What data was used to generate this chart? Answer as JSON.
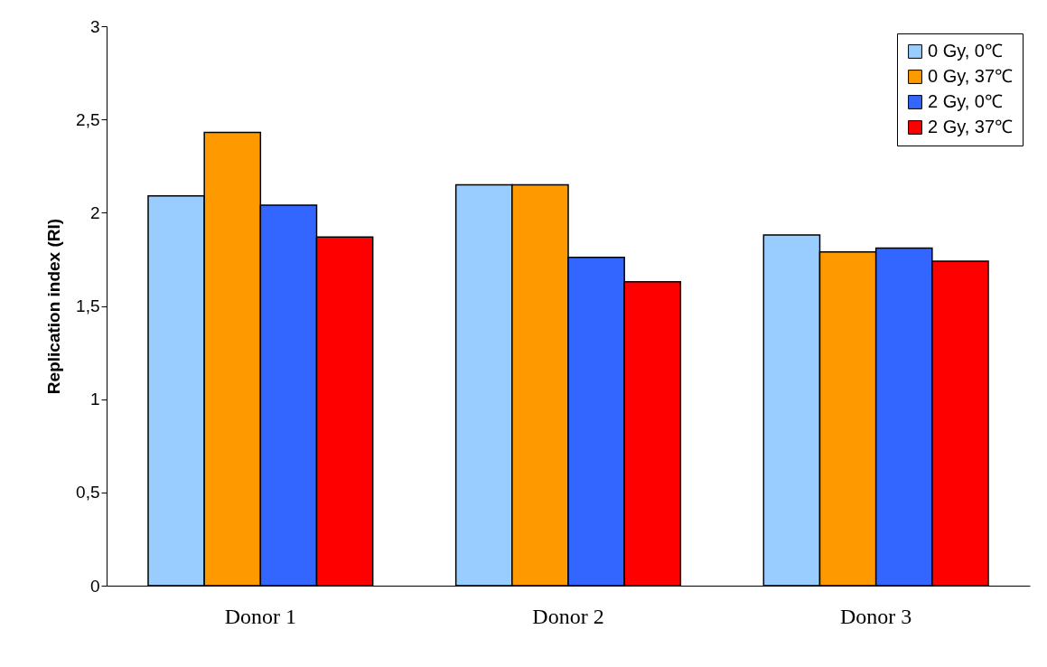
{
  "chart_data": {
    "type": "bar",
    "ylabel": "Replication index (RI)",
    "categories": [
      "Donor 1",
      "Donor 2",
      "Donor 3"
    ],
    "series": [
      {
        "name": "0 Gy, 0℃",
        "color": "#99ccff",
        "values": [
          2.09,
          2.15,
          1.88
        ]
      },
      {
        "name": "0 Gy, 37℃",
        "color": "#ff9900",
        "values": [
          2.43,
          2.15,
          1.79
        ]
      },
      {
        "name": "2 Gy, 0℃",
        "color": "#3366ff",
        "values": [
          2.04,
          1.76,
          1.81
        ]
      },
      {
        "name": "2 Gy, 37℃",
        "color": "#ff0000",
        "values": [
          1.87,
          1.63,
          1.74
        ]
      }
    ],
    "ylim": [
      0,
      3
    ],
    "yticks": [
      0,
      {
        "value": 0.5,
        "label": "0,5"
      },
      1,
      {
        "value": 1.5,
        "label": "1,5"
      },
      2,
      {
        "value": 2.5,
        "label": "2,5"
      },
      3
    ],
    "grid": false,
    "legend": "top right"
  }
}
